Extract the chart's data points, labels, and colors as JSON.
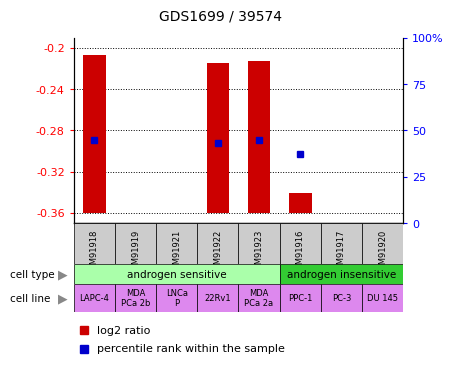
{
  "title": "GDS1699 / 39574",
  "samples": [
    "GSM91918",
    "GSM91919",
    "GSM91921",
    "GSM91922",
    "GSM91923",
    "GSM91916",
    "GSM91917",
    "GSM91920"
  ],
  "log2_ratio": [
    -0.207,
    -0.36,
    -0.36,
    -0.215,
    -0.213,
    -0.341,
    -0.36,
    -0.36
  ],
  "percentile_rank": [
    45,
    null,
    null,
    43,
    45,
    37,
    null,
    null
  ],
  "cell_type_groups": [
    {
      "label": "androgen sensitive",
      "start": 0,
      "end": 4,
      "color": "#aaffaa"
    },
    {
      "label": "androgen insensitive",
      "start": 5,
      "end": 7,
      "color": "#33cc33"
    }
  ],
  "cell_lines": [
    "LAPC-4",
    "MDA\nPCa 2b",
    "LNCa\nP",
    "22Rv1",
    "MDA\nPCa 2a",
    "PPC-1",
    "PC-3",
    "DU 145"
  ],
  "cell_line_color": "#dd88ee",
  "sample_bg_color": "#cccccc",
  "ylim_left": [
    -0.37,
    -0.19
  ],
  "ylim_right": [
    0,
    100
  ],
  "yticks_left": [
    -0.36,
    -0.32,
    -0.28,
    -0.24,
    -0.2
  ],
  "yticks_right": [
    0,
    25,
    50,
    75,
    100
  ],
  "bar_color": "#cc0000",
  "dot_color": "#0000cc",
  "legend_items": [
    {
      "label": "log2 ratio",
      "color": "#cc0000"
    },
    {
      "label": "percentile rank within the sample",
      "color": "#0000cc"
    }
  ]
}
